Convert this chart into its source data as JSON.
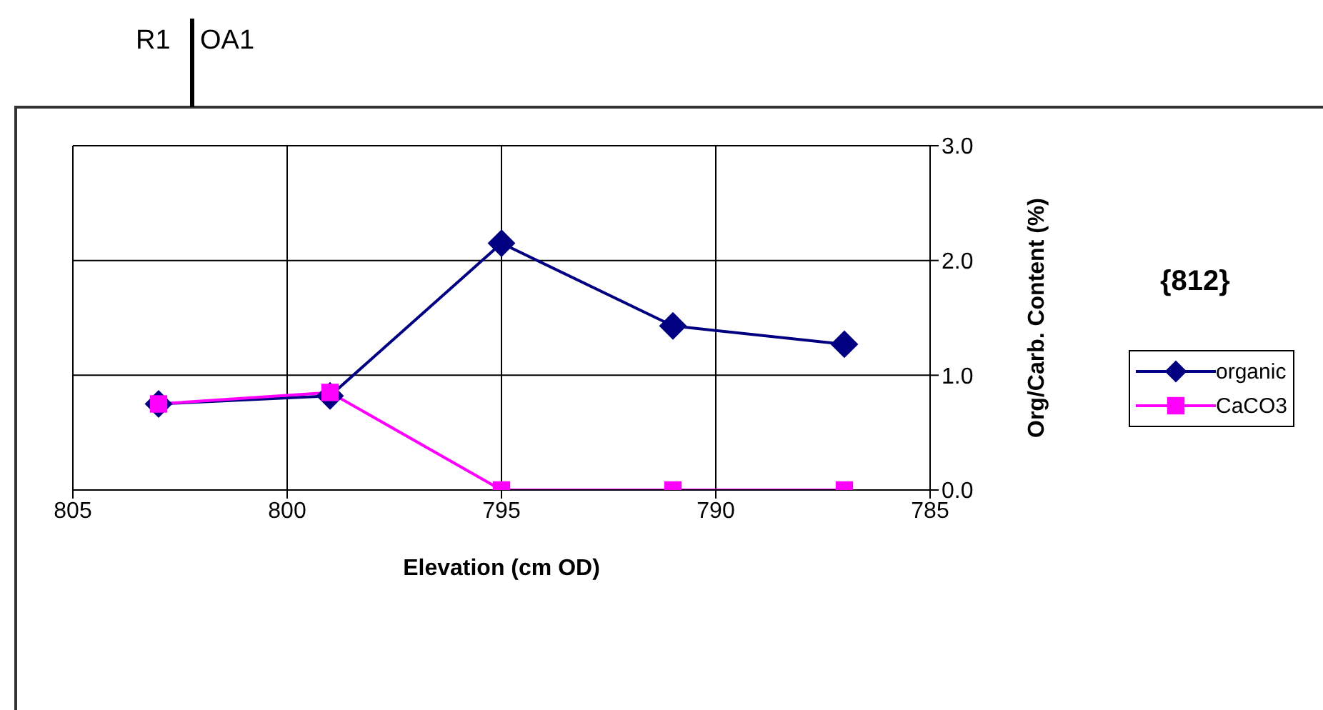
{
  "chart_data": {
    "type": "line",
    "xlabel": "Elevation (cm OD)",
    "ylabel": "Org/Carb. Content (%)",
    "annotations": [
      "R1",
      "OA1",
      "{812}"
    ],
    "x": [
      803,
      799,
      795,
      791,
      787
    ],
    "series": [
      {
        "name": "organic",
        "color": "#000080",
        "marker": "diamond",
        "values": [
          0.75,
          0.82,
          2.15,
          1.43,
          1.27
        ]
      },
      {
        "name": "CaCO3",
        "color": "#ff00ff",
        "marker": "square",
        "values": [
          0.75,
          0.85,
          0,
          0,
          0
        ]
      }
    ],
    "xlim": [
      805,
      785
    ],
    "xticks": [
      805,
      800,
      795,
      790,
      785
    ],
    "ylim": [
      0,
      3
    ],
    "yticks": [
      {
        "value": 0,
        "label": "0.0"
      },
      {
        "value": 1,
        "label": "1.0"
      },
      {
        "value": 2,
        "label": "2.0"
      },
      {
        "value": 3,
        "label": "3.0"
      }
    ],
    "grid": true,
    "legend": "right",
    "line_style": "solid"
  }
}
